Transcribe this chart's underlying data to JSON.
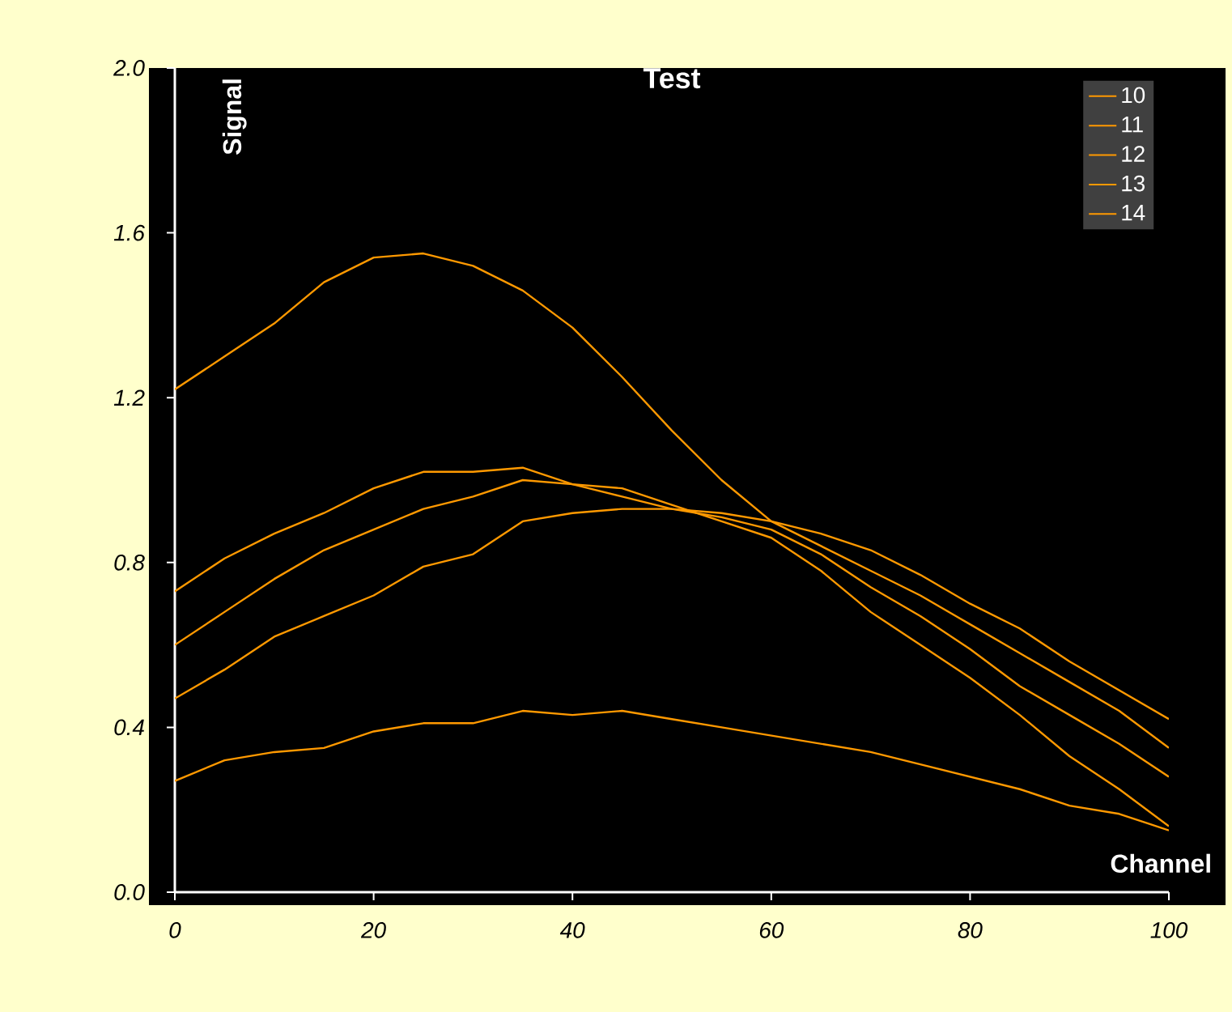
{
  "chart_data": {
    "type": "line",
    "title": "Test",
    "xlabel": "Channel",
    "ylabel": "Signal",
    "x": [
      0,
      5,
      10,
      15,
      20,
      25,
      30,
      35,
      40,
      45,
      50,
      55,
      60,
      65,
      70,
      75,
      80,
      85,
      90,
      95,
      100
    ],
    "series": [
      {
        "name": "10",
        "color": "#ff9900",
        "values": [
          1.22,
          1.3,
          1.38,
          1.48,
          1.54,
          1.55,
          1.52,
          1.46,
          1.37,
          1.25,
          1.12,
          1.0,
          0.9,
          0.84,
          0.78,
          0.72,
          0.65,
          0.58,
          0.51,
          0.44,
          0.35
        ]
      },
      {
        "name": "11",
        "color": "#ff9900",
        "values": [
          0.73,
          0.81,
          0.87,
          0.92,
          0.98,
          1.02,
          1.02,
          1.03,
          0.99,
          0.98,
          0.94,
          0.9,
          0.86,
          0.78,
          0.68,
          0.6,
          0.52,
          0.43,
          0.33,
          0.25,
          0.16
        ]
      },
      {
        "name": "12",
        "color": "#ff9900",
        "values": [
          0.6,
          0.68,
          0.76,
          0.83,
          0.88,
          0.93,
          0.96,
          1.0,
          0.99,
          0.96,
          0.93,
          0.91,
          0.88,
          0.82,
          0.74,
          0.67,
          0.59,
          0.5,
          0.43,
          0.36,
          0.28
        ]
      },
      {
        "name": "13",
        "color": "#ff9900",
        "values": [
          0.47,
          0.54,
          0.62,
          0.67,
          0.72,
          0.79,
          0.82,
          0.9,
          0.92,
          0.93,
          0.93,
          0.92,
          0.9,
          0.87,
          0.83,
          0.77,
          0.7,
          0.64,
          0.56,
          0.49,
          0.42
        ]
      },
      {
        "name": "14",
        "color": "#ff9900",
        "values": [
          0.27,
          0.32,
          0.34,
          0.35,
          0.39,
          0.41,
          0.41,
          0.44,
          0.43,
          0.44,
          0.42,
          0.4,
          0.38,
          0.36,
          0.34,
          0.31,
          0.28,
          0.25,
          0.21,
          0.19,
          0.15
        ]
      }
    ],
    "xlim": [
      0,
      100
    ],
    "xticks": [
      0,
      20,
      40,
      60,
      80,
      100
    ],
    "ylim": [
      0,
      2.0
    ],
    "yticks": [
      {
        "value": 0,
        "label": "0.0"
      },
      {
        "value": 0.4,
        "label": "0.4"
      },
      {
        "value": 0.8,
        "label": "0.8"
      },
      {
        "value": 1.2,
        "label": "1.2"
      },
      {
        "value": 1.6,
        "label": "1.6"
      },
      {
        "value": 2.0,
        "label": "2.0"
      }
    ],
    "grid": false,
    "legend": "top right",
    "marker": "none",
    "line_style": "solid"
  }
}
